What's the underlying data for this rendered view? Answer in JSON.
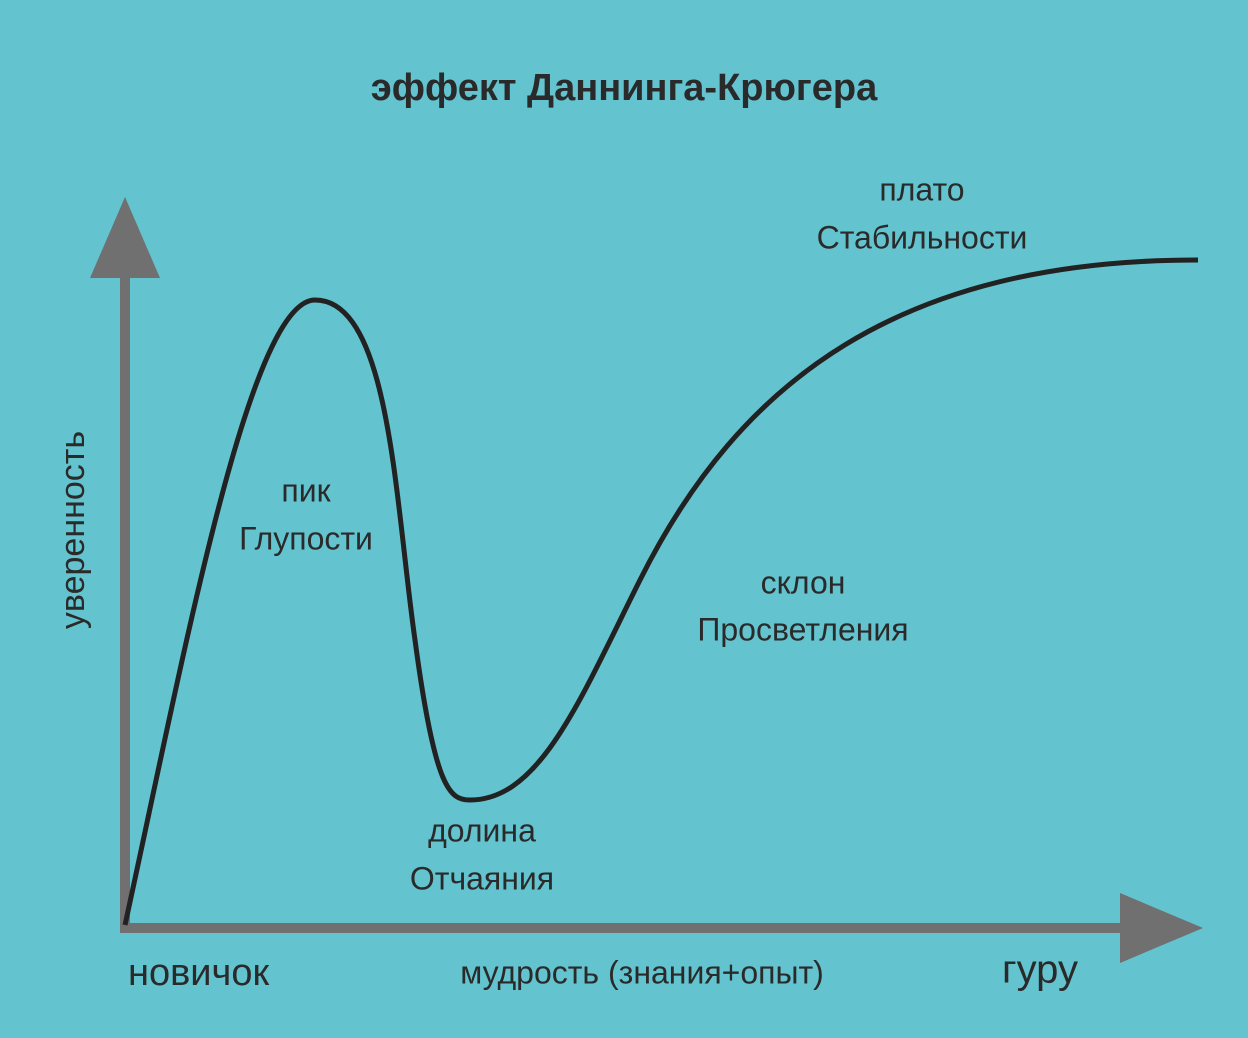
{
  "header": {
    "title": "эффект Даннинга-Крюгера"
  },
  "axes": {
    "y_label": "уверенность",
    "x_start": "новичок",
    "x_label": "мудрость (знания+опыт)",
    "x_end": "гуру"
  },
  "regions": [
    {
      "lines": [
        "пик",
        "Глупости"
      ]
    },
    {
      "lines": [
        "долина",
        "Отчаяния"
      ]
    },
    {
      "lines": [
        "склон",
        "Просветления"
      ]
    },
    {
      "lines": [
        "плато",
        "Стабильности"
      ]
    }
  ]
}
